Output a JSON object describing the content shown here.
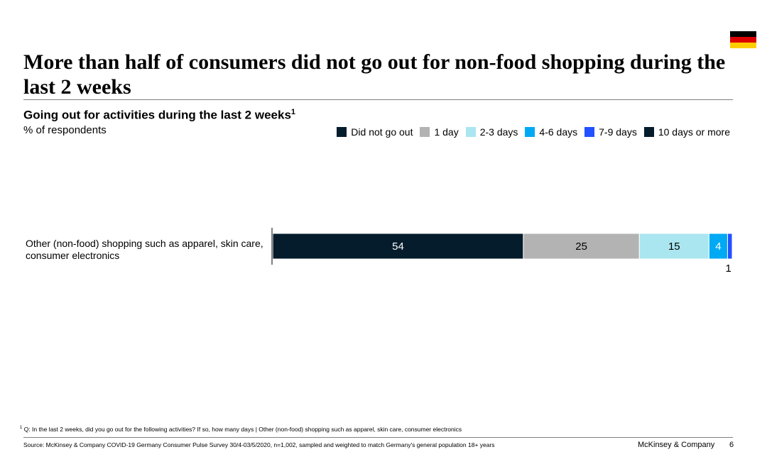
{
  "header": {
    "title": "More than half of consumers did not go out for non-food shopping during the last 2 weeks",
    "flag_colors": [
      "#000000",
      "#dd0000",
      "#ffce00"
    ],
    "flag_icon": "germany-flag-icon"
  },
  "chart_data": {
    "type": "bar",
    "orientation": "horizontal",
    "stacked": true,
    "title": "Going out for activities during the last 2 weeks",
    "title_footnote_marker": "1",
    "subtitle": "% of respondents",
    "legend_position": "top-right",
    "categories": [
      "Other (non-food) shopping such as apparel, skin care, consumer electronics"
    ],
    "series": [
      {
        "name": "Did not go out",
        "values": [
          54
        ],
        "color": "#051c2c",
        "label": "54"
      },
      {
        "name": "1 day",
        "values": [
          25
        ],
        "color": "#b3b3b3",
        "label": "25"
      },
      {
        "name": "2-3 days",
        "values": [
          15
        ],
        "color": "#aae6f0",
        "label": "15"
      },
      {
        "name": "4-6 days",
        "values": [
          4
        ],
        "color": "#00a9f4",
        "label": "4"
      },
      {
        "name": "7-9 days",
        "values": [
          1
        ],
        "color": "#2251ff",
        "label": "1"
      },
      {
        "name": "10 days or more",
        "values": [
          0
        ],
        "color": "#051c2c",
        "label": ""
      }
    ],
    "xlim": [
      0,
      99
    ],
    "grid": false
  },
  "footer": {
    "footnote_marker": "1",
    "footnote": "Q: In the last 2 weeks, did you go out for the following activities? If so, how many days | Other (non-food) shopping such as apparel, skin care, consumer electronics",
    "source": "Source: McKinsey & Company COVID-19 Germany Consumer Pulse Survey 30/4-03/5/2020, n=1,002, sampled and weighted to match Germany's general population 18+ years",
    "brand": "McKinsey & Company",
    "page_number": "6"
  }
}
